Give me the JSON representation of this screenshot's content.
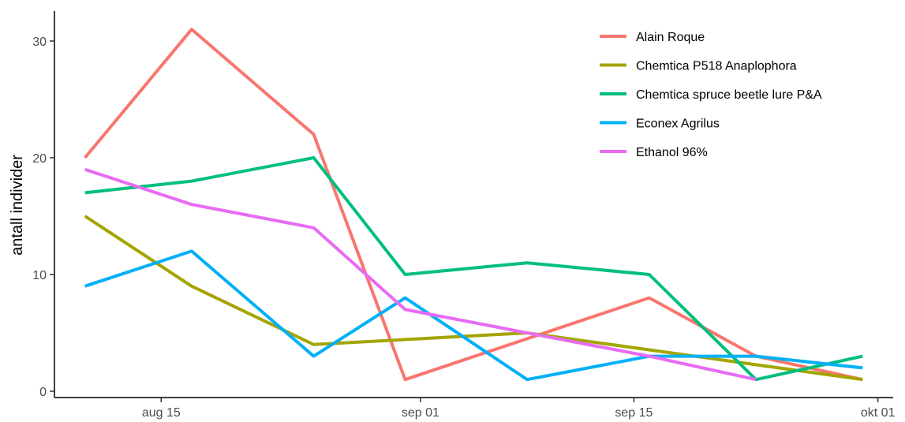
{
  "chart_data": {
    "type": "line",
    "title": "",
    "xlabel": "",
    "ylabel": "antall individer",
    "ylim": [
      0,
      32
    ],
    "xlim": [
      "2020-08-08",
      "2020-10-02"
    ],
    "grid": false,
    "legend_position": "top-right",
    "x_ticks": [
      {
        "date": "2020-08-15",
        "label": "aug 15"
      },
      {
        "date": "2020-09-01",
        "label": "sep 01"
      },
      {
        "date": "2020-09-15",
        "label": "sep 15"
      },
      {
        "date": "2020-10-01",
        "label": "okt 01"
      }
    ],
    "y_ticks": [
      {
        "value": 0,
        "label": "0"
      },
      {
        "value": 10,
        "label": "10"
      },
      {
        "value": 20,
        "label": "20"
      },
      {
        "value": 30,
        "label": "30"
      }
    ],
    "series": [
      {
        "name": "Alain Roque",
        "color": "#F8766D",
        "points": [
          {
            "x": "2020-08-10",
            "y": 20
          },
          {
            "x": "2020-08-17",
            "y": 31
          },
          {
            "x": "2020-08-25",
            "y": 22
          },
          {
            "x": "2020-08-31",
            "y": 1
          },
          {
            "x": "2020-09-16",
            "y": 8
          },
          {
            "x": "2020-09-23",
            "y": 3
          },
          {
            "x": "2020-09-30",
            "y": 1
          }
        ]
      },
      {
        "name": "Chemtica P518 Anaplophora",
        "color": "#A3A500",
        "points": [
          {
            "x": "2020-08-10",
            "y": 15
          },
          {
            "x": "2020-08-17",
            "y": 9
          },
          {
            "x": "2020-08-25",
            "y": 4
          },
          {
            "x": "2020-09-08",
            "y": 5
          },
          {
            "x": "2020-09-30",
            "y": 1
          }
        ]
      },
      {
        "name": "Chemtica spruce beetle lure P&A",
        "color": "#00BF7D",
        "points": [
          {
            "x": "2020-08-10",
            "y": 17
          },
          {
            "x": "2020-08-17",
            "y": 18
          },
          {
            "x": "2020-08-25",
            "y": 20
          },
          {
            "x": "2020-08-31",
            "y": 10
          },
          {
            "x": "2020-09-08",
            "y": 11
          },
          {
            "x": "2020-09-16",
            "y": 10
          },
          {
            "x": "2020-09-23",
            "y": 1
          },
          {
            "x": "2020-09-30",
            "y": 3
          }
        ]
      },
      {
        "name": "Econex Agrilus",
        "color": "#00B0F6",
        "points": [
          {
            "x": "2020-08-10",
            "y": 9
          },
          {
            "x": "2020-08-17",
            "y": 12
          },
          {
            "x": "2020-08-25",
            "y": 3
          },
          {
            "x": "2020-08-31",
            "y": 8
          },
          {
            "x": "2020-09-08",
            "y": 1
          },
          {
            "x": "2020-09-16",
            "y": 3
          },
          {
            "x": "2020-09-23",
            "y": 3
          },
          {
            "x": "2020-09-30",
            "y": 2
          }
        ]
      },
      {
        "name": "Ethanol 96%",
        "color": "#E76BF3",
        "points": [
          {
            "x": "2020-08-10",
            "y": 19
          },
          {
            "x": "2020-08-17",
            "y": 16
          },
          {
            "x": "2020-08-25",
            "y": 14
          },
          {
            "x": "2020-08-31",
            "y": 7
          },
          {
            "x": "2020-09-16",
            "y": 3
          },
          {
            "x": "2020-09-23",
            "y": 1
          }
        ]
      }
    ]
  }
}
